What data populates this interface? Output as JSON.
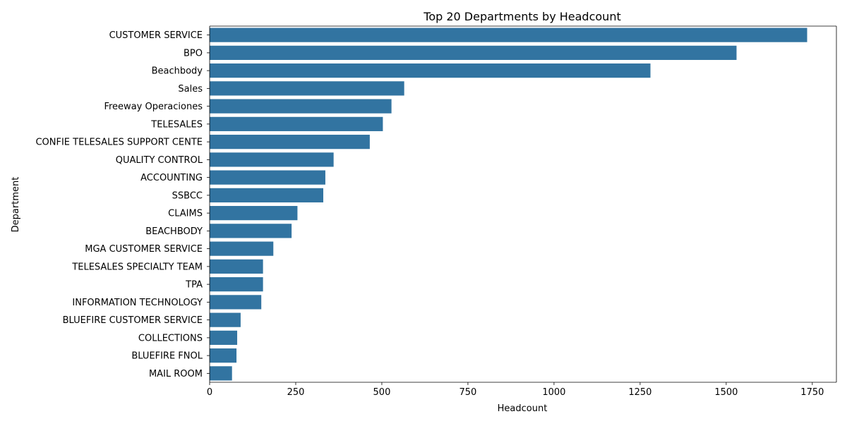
{
  "chart_data": {
    "type": "bar",
    "orientation": "horizontal",
    "title": "Top 20 Departments by Headcount",
    "xlabel": "Headcount",
    "ylabel": "Department",
    "xlim": [
      0,
      1820
    ],
    "xticks": [
      0,
      250,
      500,
      750,
      1000,
      1250,
      1500,
      1750
    ],
    "grid": false,
    "bar_color": "#3274a1",
    "categories": [
      "CUSTOMER SERVICE",
      "BPO",
      "Beachbody",
      "Sales",
      "Freeway Operaciones",
      "TELESALES",
      "CONFIE TELESALES SUPPORT CENTE",
      "QUALITY CONTROL",
      "ACCOUNTING",
      "SSBCC",
      "CLAIMS",
      "BEACHBODY",
      "MGA CUSTOMER SERVICE",
      "TELESALES SPECIALTY TEAM",
      "TPA",
      "INFORMATION TECHNOLOGY",
      "BLUEFIRE CUSTOMER SERVICE",
      "COLLECTIONS",
      "BLUEFIRE FNOL",
      "MAIL ROOM"
    ],
    "values": [
      1735,
      1530,
      1280,
      565,
      528,
      503,
      465,
      360,
      336,
      330,
      255,
      238,
      185,
      155,
      155,
      150,
      90,
      80,
      78,
      65
    ]
  }
}
